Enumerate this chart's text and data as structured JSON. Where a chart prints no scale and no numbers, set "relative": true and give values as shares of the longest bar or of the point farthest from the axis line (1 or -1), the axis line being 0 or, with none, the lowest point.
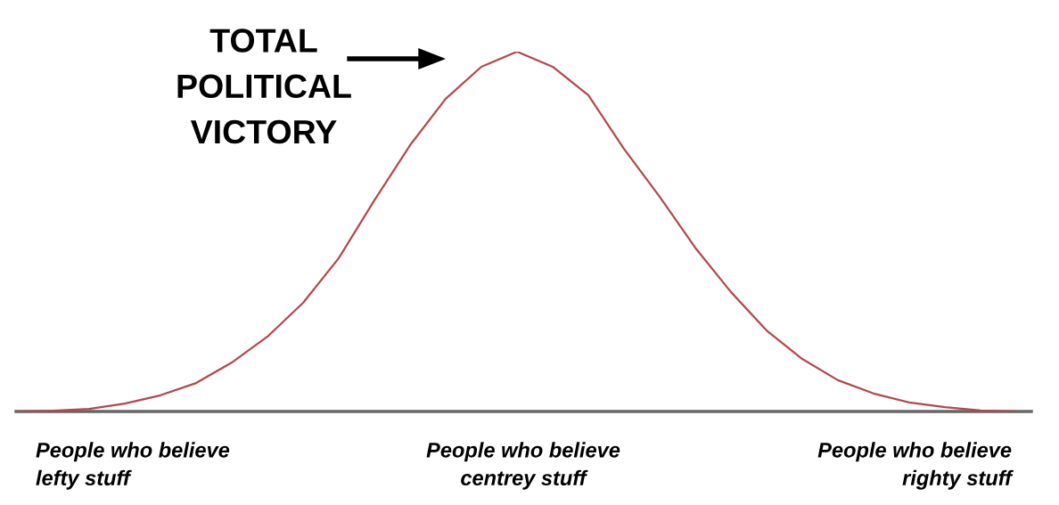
{
  "chart_data": {
    "type": "line",
    "relative": true,
    "categories": [
      null,
      null,
      null,
      null,
      null,
      null,
      null,
      null,
      null,
      null,
      null,
      null,
      null,
      null,
      null,
      null,
      null,
      null,
      null,
      null,
      null,
      null,
      null,
      null,
      null,
      null,
      null,
      null,
      null
    ],
    "series": [
      {
        "color": "#b5474b",
        "values": [
          0,
          0.002,
          0.007,
          0.022,
          0.045,
          0.079,
          0.136,
          0.208,
          0.302,
          0.426,
          0.587,
          0.74,
          0.869,
          0.958,
          1,
          0.958,
          0.879,
          0.73,
          0.597,
          0.455,
          0.332,
          0.225,
          0.146,
          0.087,
          0.05,
          0.025,
          0.012,
          0.003,
          0
        ]
      }
    ],
    "annotations": [
      "TOTAL\nPOLITICAL\nVICTORY",
      "People who believe\nlefty stuff",
      "People who believe\ncentrey stuff",
      "People who believe\nrighty stuff"
    ],
    "grid": false,
    "legend": false,
    "marker": "none",
    "line_style": "solid"
  }
}
